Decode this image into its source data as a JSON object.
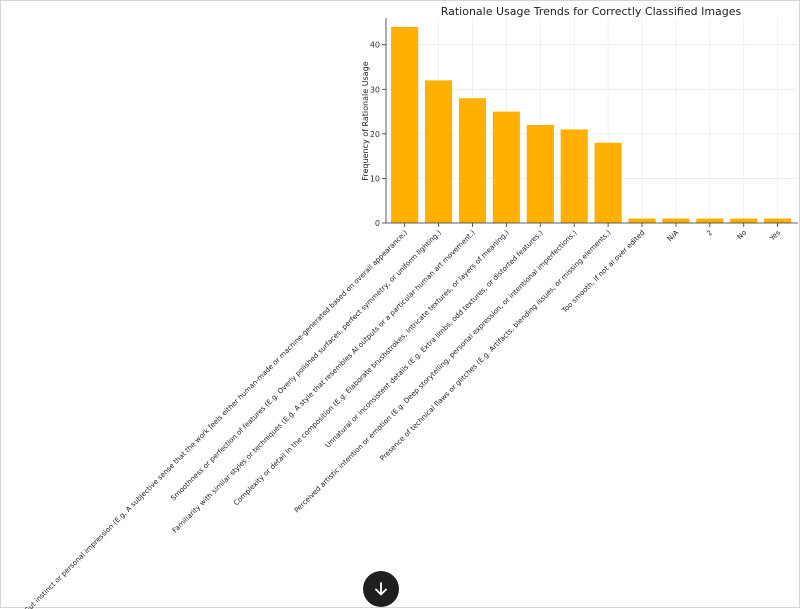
{
  "chart_data": {
    "type": "bar",
    "title": "Rationale Usage Trends for Correctly Classified Images",
    "xlabel": "",
    "ylabel": "Frequency of Rationale Usage",
    "ylim": [
      0,
      46
    ],
    "yticks": [
      0,
      10,
      20,
      30,
      40
    ],
    "grid": true,
    "bar_color": "#ffb000",
    "categories": [
      "Gut instinct or personal impression (E.g. A subjective sense that the work feels either human-made or machine-generated based on overall appearance.)",
      "Smoothness or perfection of features (E.g. Overly polished surfaces, perfect symmetry, or uniform lighting.)",
      "Familiarity with similar styles or techniques (E.g. A style that resembles AI outputs or a particular human art movement.)",
      "Complexity or detail in the composition (E.g. Elaborate brushstrokes, intricate textures, or layers of meaning.)",
      "Unnatural or inconsistent details (E.g. Extra limbs, odd textures, or distorted features.)",
      "Perceived artistic intention or emotion (E.g. Deep storytelling, personal expression, or intentional imperfections.)",
      "Presence of technical flaws or glitches (E.g. Artifacts, blending issues, or missing elements.)",
      "Too smooth, if not ai over edited",
      "N/A",
      "2",
      "No",
      "Yes"
    ],
    "values": [
      44,
      32,
      28,
      25,
      22,
      21,
      18,
      1,
      1,
      1,
      1,
      1
    ]
  },
  "ui": {
    "scroll_down_icon": "arrow-down-icon",
    "scroll_button_color": "#1f1f1f"
  }
}
